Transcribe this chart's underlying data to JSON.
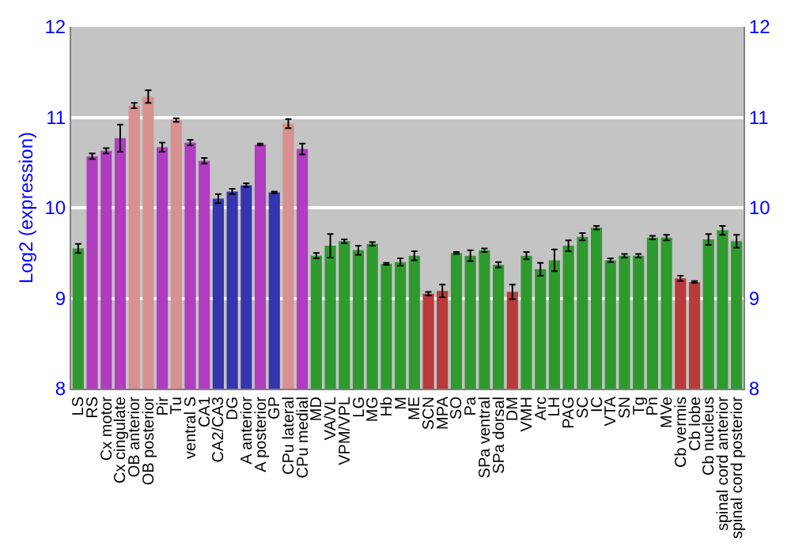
{
  "chart_data": {
    "type": "bar",
    "ylabel": "Log2 (expression)",
    "categories": [
      "LS",
      "RS",
      "Cx motor",
      "Cx cingulate",
      "OB anterior",
      "OB posterior",
      "Pir",
      "Tu",
      "ventral S",
      "CA1",
      "CA2/CA3",
      "DG",
      "A anterior",
      "A posterior",
      "GP",
      "CPu lateral",
      "CPu medial",
      "MD",
      "VA/VL",
      "VPM/VPL",
      "LG",
      "MG",
      "Hb",
      "M",
      "ME",
      "SCN",
      "MPA",
      "SO",
      "Pa",
      "SPa ventral",
      "SPa dorsal",
      "DM",
      "VMH",
      "Arc",
      "LH",
      "PAG",
      "SC",
      "IC",
      "VTA",
      "SN",
      "Tg",
      "Pn",
      "MVe",
      "Cb vermis",
      "Cb lobe",
      "Cb nucleus",
      "spinal cord anterior",
      "spinal cord posterior"
    ],
    "values": [
      9.55,
      10.57,
      10.63,
      10.77,
      11.13,
      11.23,
      10.67,
      10.97,
      10.72,
      10.52,
      10.1,
      10.18,
      10.25,
      10.7,
      10.17,
      10.93,
      10.65,
      9.47,
      9.58,
      9.63,
      9.53,
      9.6,
      9.38,
      9.4,
      9.47,
      9.05,
      9.08,
      9.5,
      9.47,
      9.53,
      9.37,
      9.07,
      9.47,
      9.32,
      9.42,
      9.58,
      9.68,
      9.78,
      9.42,
      9.47,
      9.47,
      9.67,
      9.67,
      9.22,
      9.18,
      9.65,
      9.75,
      9.63
    ],
    "errors": [
      0.05,
      0.03,
      0.03,
      0.15,
      0.03,
      0.07,
      0.05,
      0.02,
      0.03,
      0.03,
      0.05,
      0.03,
      0.02,
      0.01,
      0.01,
      0.05,
      0.06,
      0.03,
      0.13,
      0.02,
      0.05,
      0.02,
      0.01,
      0.04,
      0.05,
      0.02,
      0.07,
      0.01,
      0.06,
      0.02,
      0.03,
      0.08,
      0.04,
      0.07,
      0.12,
      0.06,
      0.04,
      0.02,
      0.02,
      0.02,
      0.02,
      0.02,
      0.03,
      0.03,
      0.01,
      0.06,
      0.05,
      0.07
    ],
    "colors": [
      "#2e9a2e",
      "#b03cc0",
      "#b03cc0",
      "#b03cc0",
      "#d89090",
      "#d89090",
      "#b03cc0",
      "#d89090",
      "#b03cc0",
      "#b03cc0",
      "#3535b0",
      "#3535b0",
      "#3535b0",
      "#b03cc0",
      "#3535b0",
      "#d89090",
      "#b03cc0",
      "#2e9a2e",
      "#2e9a2e",
      "#2e9a2e",
      "#2e9a2e",
      "#2e9a2e",
      "#2e9a2e",
      "#2e9a2e",
      "#2e9a2e",
      "#b83a3a",
      "#b83a3a",
      "#2e9a2e",
      "#2e9a2e",
      "#2e9a2e",
      "#2e9a2e",
      "#b83a3a",
      "#2e9a2e",
      "#2e9a2e",
      "#2e9a2e",
      "#2e9a2e",
      "#2e9a2e",
      "#2e9a2e",
      "#2e9a2e",
      "#2e9a2e",
      "#2e9a2e",
      "#2e9a2e",
      "#2e9a2e",
      "#b83a3a",
      "#b83a3a",
      "#2e9a2e",
      "#2e9a2e",
      "#2e9a2e"
    ],
    "ylim": [
      8,
      12
    ],
    "yticks": [
      8,
      9,
      10,
      11,
      12
    ],
    "y2lim": [
      8,
      12
    ],
    "y2ticks": [
      8,
      9,
      10,
      11,
      12
    ],
    "grid": "y"
  }
}
